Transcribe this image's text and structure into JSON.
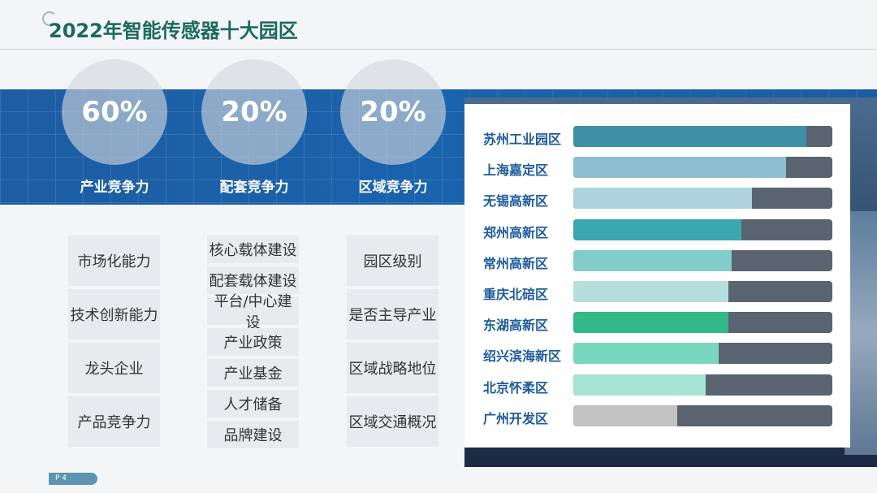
{
  "title": "2022年智能传感器十大园区",
  "page_label": "P 4",
  "metrics": [
    {
      "value": "60%",
      "label": "产业竞争力"
    },
    {
      "value": "20%",
      "label": "配套竞争力"
    },
    {
      "value": "20%",
      "label": "区域竞争力"
    }
  ],
  "factors": {
    "industry": [
      "市场化能力",
      "技术创新能力",
      "龙头企业",
      "产品竞争力"
    ],
    "supporting": [
      "核心载体建设",
      "配套载体建设",
      "平台/中心建设",
      "产业政策",
      "产业基金",
      "人才储备",
      "品牌建设"
    ],
    "regional": [
      "园区级别",
      "是否主导产业",
      "区域战略地位",
      "区域交通概况"
    ]
  },
  "chart_data": {
    "type": "bar",
    "orientation": "horizontal",
    "categories": [
      "苏州工业园区",
      "上海嘉定区",
      "无锡高新区",
      "郑州高新区",
      "常州高新区",
      "重庆北碚区",
      "东湖高新区",
      "绍兴滨海新区",
      "北京怀柔区",
      "广州开发区"
    ],
    "values": [
      0.9,
      0.82,
      0.69,
      0.65,
      0.61,
      0.6,
      0.6,
      0.56,
      0.51,
      0.4
    ],
    "max": 1,
    "colors": [
      "#3f8fa6",
      "#8dbdd0",
      "#aed3df",
      "#3aa8ae",
      "#82cdc9",
      "#b4dfdc",
      "#33b888",
      "#79d7bd",
      "#a6e3d2",
      "#c2c2c2"
    ],
    "track_color": "#5a6470",
    "grid": false
  }
}
